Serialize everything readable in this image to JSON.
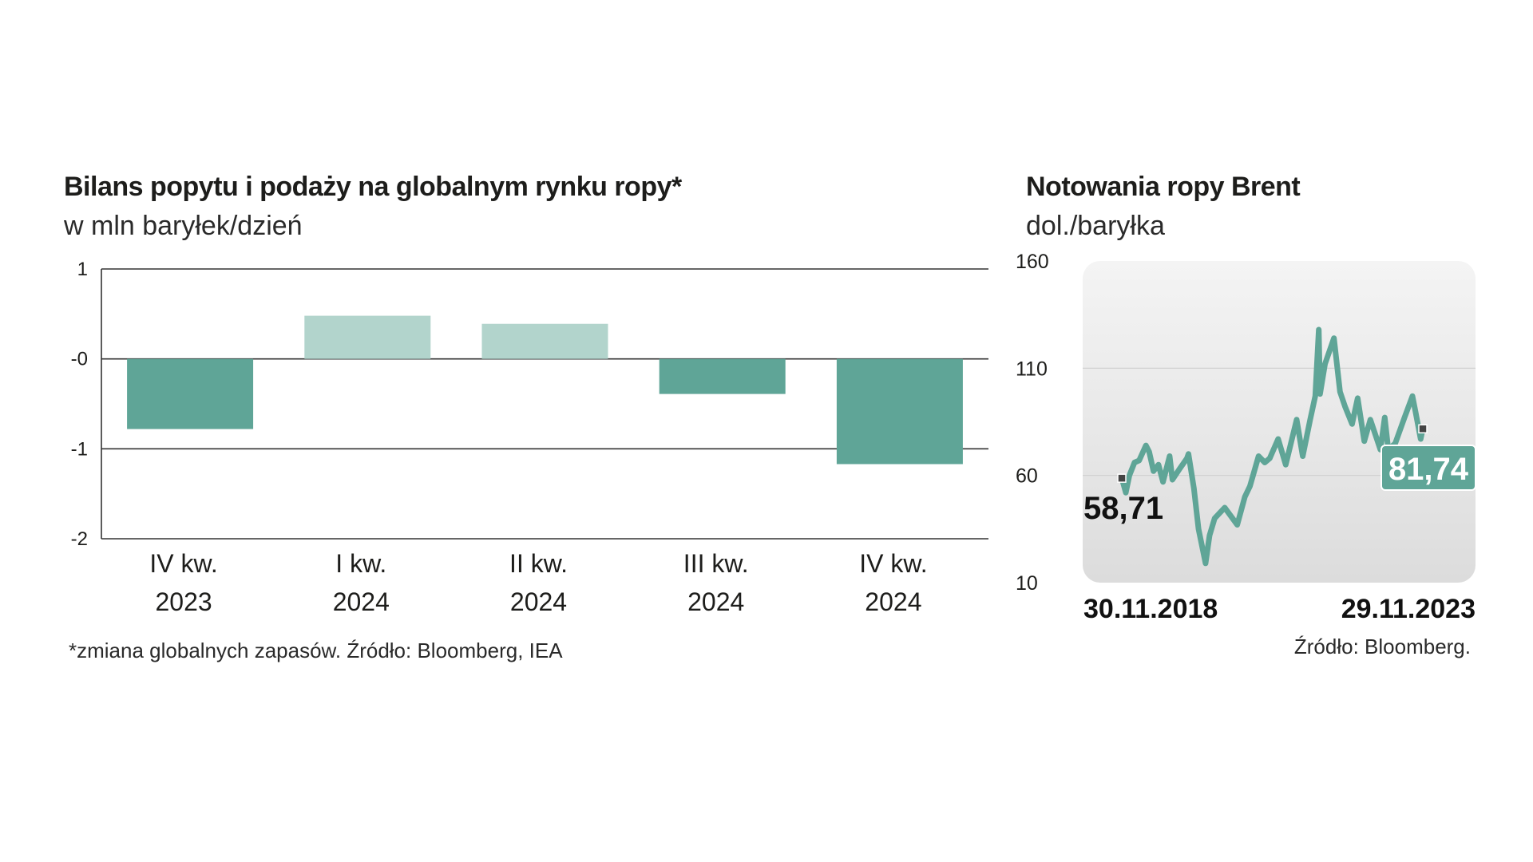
{
  "left_chart": {
    "title": "Bilans popytu i podaży na globalnym rynku ropy*",
    "subtitle": "w mln baryłek/dzień",
    "note": "*zmiana globalnych zapasów. Źródło: Bloomberg, IEA"
  },
  "right_chart": {
    "title": "Notowania ropy Brent",
    "subtitle": "dol./baryłka",
    "source": "Źródło: Bloomberg."
  },
  "colors": {
    "dark": "#5fa597",
    "light": "#b2d4cc",
    "axis": "#333333",
    "text": "#1d1d1b"
  },
  "chart_data": [
    {
      "type": "bar",
      "title": "Bilans popytu i podaży na globalnym rynku ropy*",
      "subtitle": "w mln baryłek/dzień",
      "categories": [
        [
          "IV kw.",
          "2023"
        ],
        [
          "I  kw.",
          "2024"
        ],
        [
          "II  kw.",
          "2024"
        ],
        [
          "III  kw.",
          "2024"
        ],
        [
          "IV kw.",
          "2024"
        ]
      ],
      "values": [
        -0.78,
        0.48,
        0.39,
        -0.39,
        -1.17
      ],
      "yticks": [
        1,
        0,
        -1,
        -2
      ],
      "ytick_labels": [
        "1",
        "-0",
        "-1",
        "-2"
      ],
      "ylim": [
        -2,
        1
      ],
      "grid": true
    },
    {
      "type": "line",
      "title": "Notowania ropy Brent",
      "subtitle": "dol./baryłka",
      "x_labels": [
        "30.11.2018",
        "29.11.2023"
      ],
      "x_range": [
        "2018-11-30",
        "2023-11-29"
      ],
      "yticks": [
        160,
        110,
        60,
        10
      ],
      "ylim": [
        10,
        160
      ],
      "grid": true,
      "start_label": "58,71",
      "end_label": "81,74",
      "points": [
        [
          "2018-11-30",
          58.71
        ],
        [
          "2018-12-24",
          52
        ],
        [
          "2019-01-15",
          60
        ],
        [
          "2019-02-15",
          66
        ],
        [
          "2019-03-15",
          67
        ],
        [
          "2019-04-25",
          74
        ],
        [
          "2019-05-15",
          71
        ],
        [
          "2019-06-10",
          62
        ],
        [
          "2019-07-10",
          65
        ],
        [
          "2019-08-07",
          57
        ],
        [
          "2019-09-16",
          69
        ],
        [
          "2019-10-03",
          58
        ],
        [
          "2019-11-15",
          63
        ],
        [
          "2019-12-30",
          68
        ],
        [
          "2020-01-08",
          70
        ],
        [
          "2020-02-10",
          54
        ],
        [
          "2020-03-09",
          35
        ],
        [
          "2020-04-21",
          19
        ],
        [
          "2020-05-15",
          32
        ],
        [
          "2020-06-15",
          40
        ],
        [
          "2020-08-15",
          45
        ],
        [
          "2020-10-30",
          37
        ],
        [
          "2020-12-15",
          50
        ],
        [
          "2021-01-15",
          55
        ],
        [
          "2021-03-08",
          69
        ],
        [
          "2021-04-15",
          66
        ],
        [
          "2021-05-15",
          68
        ],
        [
          "2021-07-05",
          77
        ],
        [
          "2021-08-20",
          65
        ],
        [
          "2021-10-25",
          86
        ],
        [
          "2021-12-01",
          69
        ],
        [
          "2022-01-15",
          86
        ],
        [
          "2022-02-15",
          97
        ],
        [
          "2022-03-08",
          128
        ],
        [
          "2022-03-16",
          98
        ],
        [
          "2022-04-15",
          112
        ],
        [
          "2022-06-08",
          124
        ],
        [
          "2022-07-15",
          99
        ],
        [
          "2022-08-15",
          92
        ],
        [
          "2022-09-26",
          84
        ],
        [
          "2022-10-30",
          96
        ],
        [
          "2022-12-09",
          76
        ],
        [
          "2023-01-15",
          86
        ],
        [
          "2023-03-17",
          72
        ],
        [
          "2023-04-12",
          87
        ],
        [
          "2023-05-04",
          72
        ],
        [
          "2023-06-15",
          75
        ],
        [
          "2023-08-10",
          87
        ],
        [
          "2023-09-27",
          97
        ],
        [
          "2023-10-15",
          90
        ],
        [
          "2023-11-16",
          77
        ],
        [
          "2023-11-29",
          81.74
        ]
      ]
    }
  ]
}
